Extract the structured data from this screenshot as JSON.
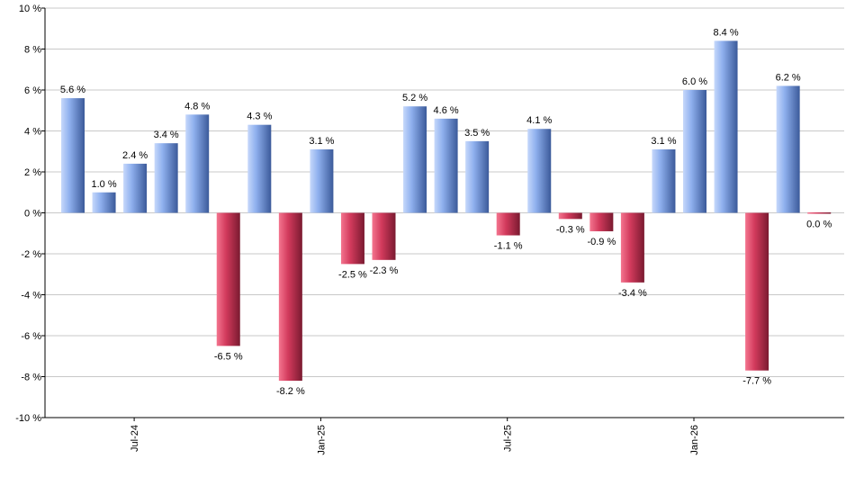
{
  "chart_data": {
    "type": "bar",
    "title": "",
    "xlabel": "",
    "ylabel": "",
    "ylim": [
      -10,
      10
    ],
    "y_ticks": [
      10,
      8,
      6,
      4,
      2,
      0,
      -2,
      -4,
      -6,
      -8,
      -10
    ],
    "y_tick_suffix": " %",
    "grid": true,
    "x_tick_labels": [
      {
        "label": "Jul-24",
        "index": 2
      },
      {
        "label": "Jan-25",
        "index": 8
      },
      {
        "label": "Jul-25",
        "index": 14
      },
      {
        "label": "Jan-26",
        "index": 20
      }
    ],
    "values": [
      5.6,
      1.0,
      2.4,
      3.4,
      4.8,
      -6.5,
      4.3,
      -8.2,
      3.1,
      -2.5,
      -2.3,
      5.2,
      4.6,
      3.5,
      -1.1,
      4.1,
      -0.3,
      -0.9,
      -3.4,
      3.1,
      6.0,
      8.4,
      -7.7,
      6.2,
      0.0
    ],
    "labels": [
      "5.6 %",
      "1.0 %",
      "2.4 %",
      "3.4 %",
      "4.8 %",
      "-6.5 %",
      "4.3 %",
      "-8.2 %",
      "3.1 %",
      "-2.5 %",
      "-2.3 %",
      "5.2 %",
      "4.6 %",
      "3.5 %",
      "-1.1 %",
      "4.1 %",
      "-0.3 %",
      "-0.9 %",
      "-3.4 %",
      "3.1 %",
      "6.0 %",
      "8.4 %",
      "-7.7 %",
      "6.2 %",
      "0.0 %"
    ],
    "colors": {
      "positive_light": "#a9c4f5",
      "positive_dark": "#3b5a9a",
      "negative_light": "#f0607e",
      "negative_dark": "#7a1a30",
      "grid": "#c8c8c8",
      "axis": "#000000"
    }
  }
}
